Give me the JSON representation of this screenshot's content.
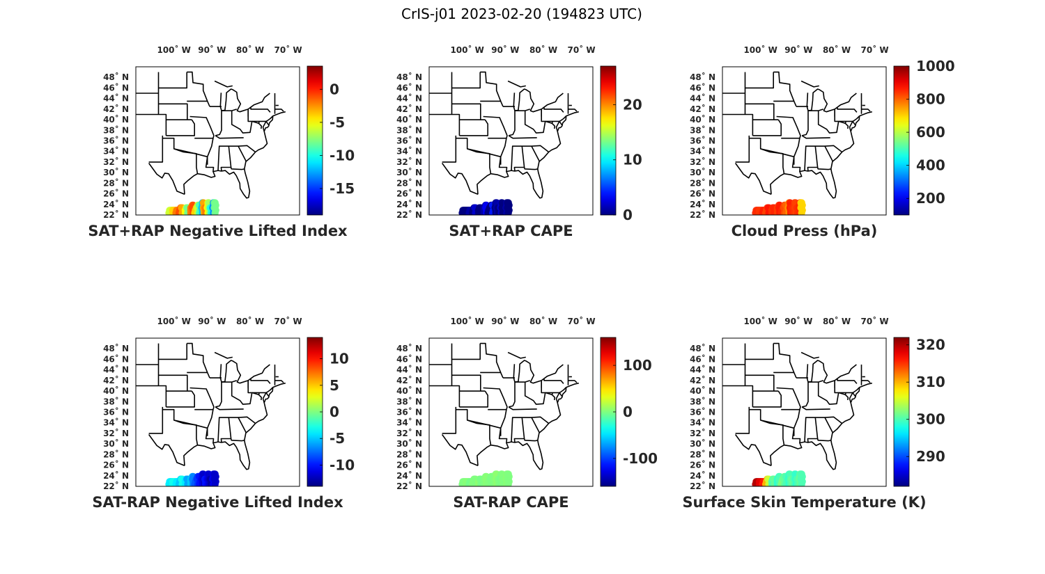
{
  "figure": {
    "title": "CrIS-j01 2023-02-20 (194823 UTC)",
    "colormap": "jet",
    "map_extent": {
      "lon_min": -110,
      "lon_max": -67,
      "lat_min": 22,
      "lat_max": 50
    },
    "lon_tick_labels": [
      "100˚ W",
      "90˚ W",
      "80˚ W",
      "70˚ W"
    ],
    "lon_ticks": [
      -100,
      -90,
      -80,
      -70
    ],
    "lat_tick_labels": [
      "48˚ N",
      "46˚ N",
      "44˚ N",
      "42˚ N",
      "40˚ N",
      "38˚ N",
      "36˚ N",
      "34˚ N",
      "32˚ N",
      "30˚ N",
      "28˚ N",
      "26˚ N",
      "24˚ N",
      "22˚ N"
    ],
    "lat_ticks": [
      48,
      46,
      44,
      42,
      40,
      38,
      36,
      34,
      32,
      30,
      28,
      26,
      24,
      22
    ]
  },
  "panels": [
    {
      "title": "SAT+RAP Negative Lifted Index",
      "clim": [
        -19,
        3.5
      ],
      "cticks": [
        0,
        -5,
        -10,
        -15
      ],
      "ctick_labels": [
        "0",
        "-5",
        "-10",
        "-15"
      ],
      "sample_values": [
        -6,
        -4,
        -2,
        -1,
        -3,
        -5,
        -8,
        -2,
        -1,
        -4,
        -6,
        -9,
        -12,
        -3,
        -2,
        -5,
        -7,
        -10,
        -13,
        -8
      ]
    },
    {
      "title": "SAT+RAP CAPE",
      "clim": [
        0,
        27
      ],
      "cticks": [
        20,
        10,
        0
      ],
      "ctick_labels": [
        "20",
        "10",
        "0"
      ],
      "sample_values": [
        0,
        0,
        1,
        0,
        2,
        0,
        0,
        1,
        3,
        0,
        0,
        4,
        0,
        1,
        0,
        2,
        0,
        0,
        1,
        0
      ]
    },
    {
      "title": "Cloud Press (hPa)",
      "clim": [
        100,
        1000
      ],
      "cticks": [
        1000,
        800,
        600,
        400,
        200
      ],
      "ctick_labels": [
        "1000",
        "800",
        "600",
        "400",
        "200"
      ],
      "sample_values": [
        850,
        840,
        860,
        830,
        870,
        845,
        855,
        835,
        865,
        850,
        820,
        800,
        760,
        860,
        850,
        840,
        830,
        845,
        855,
        700
      ]
    },
    {
      "title": "SAT-RAP Negative Lifted Index",
      "clim": [
        -14,
        14
      ],
      "cticks": [
        10,
        5,
        0,
        -5,
        -10
      ],
      "ctick_labels": [
        "10",
        "5",
        "0",
        "-5",
        "-10"
      ],
      "sample_values": [
        -4,
        -3,
        -4,
        -5,
        -3,
        -4,
        -6,
        -5,
        -7,
        -8,
        -9,
        -10,
        -11,
        -12,
        -10,
        -11,
        -12,
        -13,
        -11,
        -12
      ]
    },
    {
      "title": "SAT-RAP CAPE",
      "clim": [
        -160,
        160
      ],
      "cticks": [
        100,
        0,
        -100
      ],
      "ctick_labels": [
        "100",
        "0",
        "-100"
      ],
      "sample_values": [
        0,
        2,
        -3,
        1,
        0,
        4,
        -2,
        0,
        3,
        1,
        -1,
        0,
        2,
        5,
        0,
        -2,
        1,
        0,
        3,
        0
      ]
    },
    {
      "title": "Surface Skin Temperature (K)",
      "clim": [
        282,
        322
      ],
      "cticks": [
        320,
        310,
        300,
        290
      ],
      "ctick_labels": [
        "320",
        "310",
        "300",
        "290"
      ],
      "sample_values": [
        320,
        318,
        316,
        310,
        305,
        300,
        301,
        299,
        300,
        302,
        301,
        300,
        299,
        300,
        301,
        300,
        299,
        300,
        301,
        300
      ]
    }
  ],
  "chart_data": {
    "type": "scatter",
    "description_source": "Six map panels of CrIS-j01 swath retrievals over the eastern US / Gulf of Mexico; points lie along approximately lat 22.2-24.6 N, lon -101.5 to -89 W.",
    "swath": {
      "lon_range": [
        -101.5,
        -89
      ],
      "lat_range": [
        22.2,
        24.6
      ]
    },
    "panels": [
      {
        "title": "SAT+RAP Negative Lifted Index",
        "clim": [
          -19,
          3.5
        ]
      },
      {
        "title": "SAT+RAP CAPE",
        "clim": [
          0,
          27
        ]
      },
      {
        "title": "Cloud Press (hPa)",
        "clim": [
          100,
          1000
        ]
      },
      {
        "title": "SAT-RAP Negative Lifted Index",
        "clim": [
          -14,
          14
        ]
      },
      {
        "title": "SAT-RAP CAPE",
        "clim": [
          -160,
          160
        ]
      },
      {
        "title": "Surface Skin Temperature (K)",
        "clim": [
          282,
          322
        ]
      }
    ]
  }
}
